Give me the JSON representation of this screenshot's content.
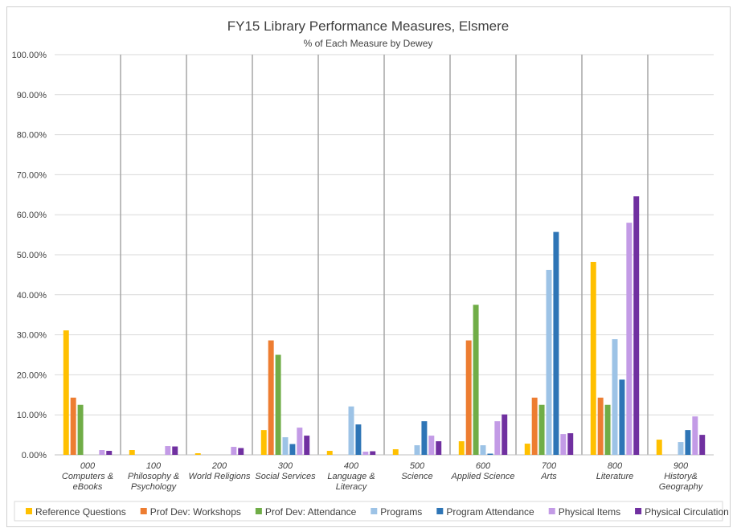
{
  "chart_data": {
    "type": "bar",
    "title": "FY15 Library Performance Measures, Elsmere",
    "subtitle": "% of Each Measure by Dewey",
    "xlabel": "",
    "ylabel": "",
    "ylim": [
      0,
      100
    ],
    "yticks": [
      "0.00%",
      "10.00%",
      "20.00%",
      "30.00%",
      "40.00%",
      "50.00%",
      "60.00%",
      "70.00%",
      "80.00%",
      "90.00%",
      "100.00%"
    ],
    "categories": [
      [
        "000",
        "Computers &",
        "eBooks"
      ],
      [
        "100",
        "Philosophy &",
        "Psychology"
      ],
      [
        "200",
        "World Religions"
      ],
      [
        "300",
        "Social Services"
      ],
      [
        "400",
        "Language &",
        "Literacy"
      ],
      [
        "500",
        "Science"
      ],
      [
        "600",
        "Applied Science"
      ],
      [
        "700",
        "Arts"
      ],
      [
        "800",
        "Literature"
      ],
      [
        "900",
        "History&",
        "Geography"
      ]
    ],
    "series": [
      {
        "name": "Reference Questions",
        "color": "#ffc000",
        "values": [
          31.1,
          1.2,
          0.4,
          6.2,
          1.0,
          1.4,
          3.4,
          2.8,
          48.2,
          3.8
        ]
      },
      {
        "name": "Prof Dev: Workshops",
        "color": "#ed7d31",
        "values": [
          14.3,
          0,
          0,
          28.6,
          0,
          0,
          28.6,
          14.3,
          14.3,
          0
        ]
      },
      {
        "name": "Prof Dev: Attendance",
        "color": "#70ad47",
        "values": [
          12.5,
          0,
          0,
          25.0,
          0,
          0,
          37.5,
          12.5,
          12.5,
          0
        ]
      },
      {
        "name": "Programs",
        "color": "#9dc3e6",
        "values": [
          0,
          0,
          0,
          4.4,
          12.1,
          2.4,
          2.4,
          46.2,
          28.9,
          3.2
        ]
      },
      {
        "name": "Program Attendance",
        "color": "#2e75b6",
        "values": [
          0,
          0,
          0,
          2.7,
          7.6,
          8.4,
          0.3,
          55.7,
          18.8,
          6.2
        ]
      },
      {
        "name": "Physical Items",
        "color": "#c39be6",
        "values": [
          1.2,
          2.2,
          2.0,
          6.8,
          0.8,
          4.8,
          8.4,
          5.2,
          58.0,
          9.6
        ]
      },
      {
        "name": "Physical Circulation",
        "color": "#7030a0",
        "values": [
          1.0,
          2.1,
          1.7,
          4.8,
          0.9,
          3.4,
          10.1,
          5.4,
          64.6,
          5.0
        ]
      }
    ]
  }
}
